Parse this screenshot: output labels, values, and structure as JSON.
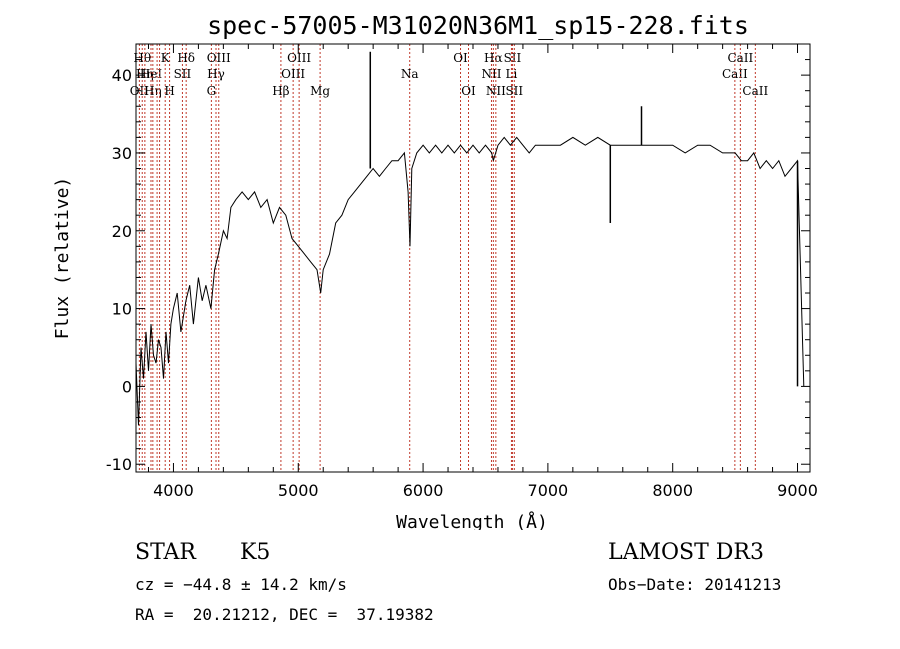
{
  "chart_data": {
    "type": "line",
    "title": "spec-57005-M31020N36M1_sp15-228.fits",
    "xlabel": "Wavelength (Å)",
    "ylabel": "Flux (relative)",
    "xlim": [
      3700,
      9100
    ],
    "ylim": [
      -11,
      44
    ],
    "xticks": [
      4000,
      5000,
      6000,
      7000,
      8000,
      9000
    ],
    "yticks": [
      -10,
      0,
      10,
      20,
      30,
      40
    ],
    "grid": false,
    "series": [
      {
        "name": "flux",
        "x": [
          3700,
          3720,
          3740,
          3760,
          3780,
          3800,
          3820,
          3840,
          3860,
          3880,
          3900,
          3920,
          3940,
          3960,
          3980,
          4000,
          4030,
          4060,
          4100,
          4130,
          4160,
          4200,
          4230,
          4260,
          4300,
          4330,
          4360,
          4400,
          4430,
          4460,
          4500,
          4550,
          4600,
          4650,
          4700,
          4750,
          4800,
          4850,
          4900,
          4950,
          5000,
          5050,
          5100,
          5150,
          5180,
          5200,
          5250,
          5300,
          5350,
          5400,
          5450,
          5500,
          5550,
          5600,
          5650,
          5700,
          5750,
          5800,
          5850,
          5880,
          5895,
          5910,
          5950,
          6000,
          6050,
          6100,
          6150,
          6200,
          6250,
          6300,
          6350,
          6400,
          6450,
          6500,
          6550,
          6563,
          6600,
          6650,
          6700,
          6750,
          6800,
          6850,
          6900,
          7000,
          7100,
          7200,
          7300,
          7400,
          7500,
          7600,
          7700,
          7800,
          7900,
          8000,
          8100,
          8200,
          8300,
          8400,
          8450,
          8500,
          8550,
          8600,
          8650,
          8700,
          8750,
          8800,
          8850,
          8900,
          8950,
          9000,
          9050
        ],
        "values": [
          3,
          -5,
          5,
          1,
          7,
          2,
          8,
          4,
          3,
          6,
          5,
          1,
          7,
          3,
          8,
          10,
          12,
          7,
          11,
          13,
          8,
          14,
          11,
          13,
          10,
          15,
          17,
          20,
          19,
          23,
          24,
          25,
          24,
          25,
          23,
          24,
          21,
          23,
          22,
          19,
          18,
          17,
          16,
          15,
          12,
          15,
          17,
          21,
          22,
          24,
          25,
          26,
          27,
          28,
          27,
          28,
          29,
          29,
          30,
          25,
          18,
          28,
          30,
          31,
          30,
          31,
          30,
          31,
          30,
          31,
          30,
          31,
          30,
          31,
          30,
          29,
          31,
          32,
          31,
          32,
          31,
          30,
          31,
          31,
          31,
          32,
          31,
          32,
          31,
          31,
          31,
          31,
          31,
          31,
          30,
          31,
          31,
          30,
          30,
          30,
          29,
          29,
          30,
          28,
          29,
          28,
          29,
          27,
          28,
          29,
          0
        ]
      }
    ],
    "spikes": [
      {
        "x": 5577,
        "y": 33
      },
      {
        "x": 5577,
        "y": 43
      },
      {
        "x": 5893,
        "y": 18
      },
      {
        "x": 7500,
        "y": 21
      },
      {
        "x": 7750,
        "y": 36
      },
      {
        "x": 9000,
        "y": 0
      }
    ],
    "spectral_lines": [
      {
        "x": 3727,
        "label": "OII",
        "row": 3
      },
      {
        "x": 3750,
        "label": "Hθ",
        "row": 1
      },
      {
        "x": 3771,
        "label": "Hη",
        "row": 2
      },
      {
        "x": 3820,
        "label": "HeI",
        "row": 2
      },
      {
        "x": 3835,
        "label": "Hη",
        "row": 3
      },
      {
        "x": 3869,
        "label": "",
        "row": 0
      },
      {
        "x": 3889,
        "label": "",
        "row": 0
      },
      {
        "x": 3934,
        "label": "K",
        "row": 1
      },
      {
        "x": 3969,
        "label": "H",
        "row": 3
      },
      {
        "x": 4072,
        "label": "SII",
        "row": 2
      },
      {
        "x": 4102,
        "label": "Hδ",
        "row": 1
      },
      {
        "x": 4304,
        "label": "G",
        "row": 3
      },
      {
        "x": 4341,
        "label": "Hγ",
        "row": 2
      },
      {
        "x": 4363,
        "label": "OIII",
        "row": 1
      },
      {
        "x": 4861,
        "label": "Hβ",
        "row": 3
      },
      {
        "x": 4959,
        "label": "OIII",
        "row": 2
      },
      {
        "x": 5007,
        "label": "OIII",
        "row": 1
      },
      {
        "x": 5175,
        "label": "Mg",
        "row": 3
      },
      {
        "x": 5893,
        "label": "Na",
        "row": 2
      },
      {
        "x": 6300,
        "label": "OI",
        "row": 1
      },
      {
        "x": 6364,
        "label": "OI",
        "row": 3
      },
      {
        "x": 6548,
        "label": "NII",
        "row": 2
      },
      {
        "x": 6563,
        "label": "Hα",
        "row": 1
      },
      {
        "x": 6583,
        "label": "NII",
        "row": 3
      },
      {
        "x": 6708,
        "label": "Li",
        "row": 2
      },
      {
        "x": 6716,
        "label": "SII",
        "row": 1
      },
      {
        "x": 6731,
        "label": "SII",
        "row": 3
      },
      {
        "x": 8498,
        "label": "CaII",
        "row": 2
      },
      {
        "x": 8542,
        "label": "CaII",
        "row": 1
      },
      {
        "x": 8662,
        "label": "CaII",
        "row": 3
      }
    ]
  },
  "info": {
    "class": "STAR",
    "subclass": "K5",
    "survey": "LAMOST DR3",
    "cz": "cz = −44.8 ± 14.2 km/s",
    "obs_date": "Obs−Date: 20141213",
    "coords": "RA =  20.21212, DEC =  37.19382"
  },
  "colors": {
    "line_marker": "#c0392b",
    "spectrum": "#000000"
  }
}
